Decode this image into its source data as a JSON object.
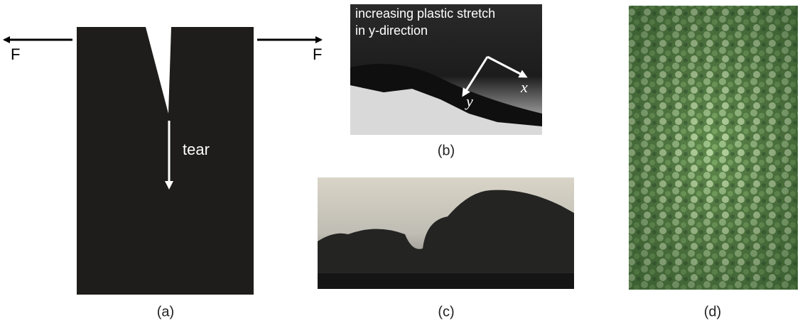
{
  "panels": [
    {
      "label": "(a)",
      "annotations": {
        "force_left": "F",
        "force_right": "F",
        "tear": "tear"
      }
    },
    {
      "label": "(b)",
      "annotations": {
        "caption": [
          "increasing plastic stretch",
          "in y-direction"
        ],
        "axis_x": "x",
        "axis_y": "y"
      }
    },
    {
      "label": "(c)"
    },
    {
      "label": "(d)"
    }
  ]
}
